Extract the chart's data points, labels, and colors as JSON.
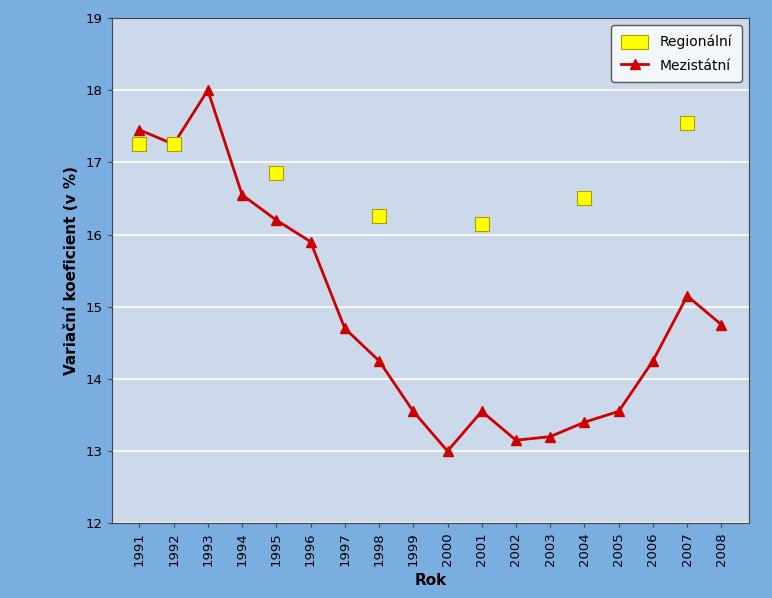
{
  "years": [
    1991,
    1992,
    1993,
    1994,
    1995,
    1996,
    1997,
    1998,
    1999,
    2000,
    2001,
    2002,
    2003,
    2004,
    2005,
    2006,
    2007,
    2008
  ],
  "mezistátní": [
    17.45,
    17.25,
    18.0,
    16.55,
    16.2,
    15.9,
    14.7,
    14.25,
    13.55,
    13.0,
    13.55,
    13.15,
    13.2,
    13.4,
    13.55,
    14.25,
    15.15,
    14.75
  ],
  "regionální_years": [
    1991,
    1992,
    1995,
    1998,
    2001,
    2004,
    2007
  ],
  "regionální": [
    17.25,
    17.25,
    16.85,
    16.25,
    16.15,
    16.5,
    17.55
  ],
  "ylabel": "Variační koeficient (v %)",
  "xlabel": "Rok",
  "ylim": [
    12,
    19
  ],
  "yticks": [
    12,
    13,
    14,
    15,
    16,
    17,
    18,
    19
  ],
  "legend_regionalni": "Regionální",
  "legend_mezistátní": "Mezistátní",
  "line_color": "#cc0000",
  "square_color": "#ffff00",
  "square_edge_color": "#888800",
  "bg_color": "#ccd9eb",
  "outer_bg": "#7aade0",
  "grid_color": "#ffffff",
  "axis_label_fontsize": 11,
  "tick_fontsize": 9.5
}
